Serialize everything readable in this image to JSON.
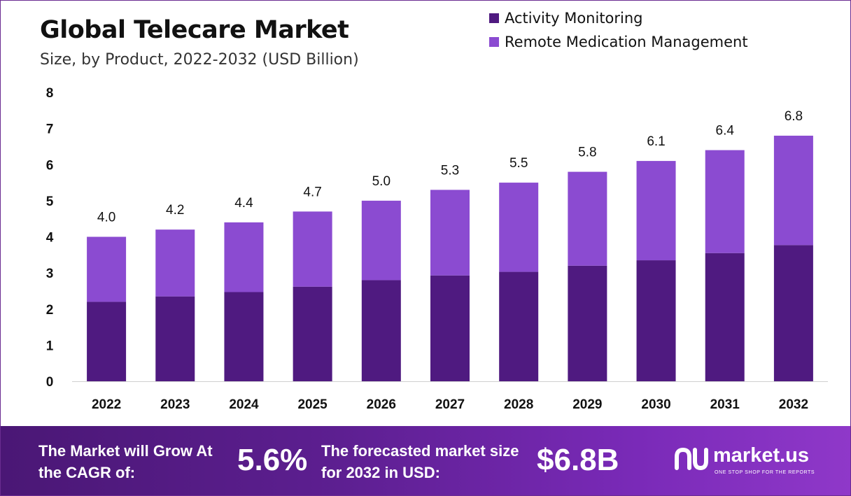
{
  "chart_data": {
    "type": "bar",
    "stacked": true,
    "title": "Global Telecare Market",
    "subtitle": "Size, by Product, 2022-2032 (USD Billion)",
    "categories": [
      "2022",
      "2023",
      "2024",
      "2025",
      "2026",
      "2027",
      "2028",
      "2029",
      "2030",
      "2031",
      "2032"
    ],
    "series": [
      {
        "name": "Activity Monitoring",
        "color": "#4f1a80",
        "values": [
          2.2,
          2.35,
          2.47,
          2.62,
          2.8,
          2.93,
          3.03,
          3.2,
          3.35,
          3.55,
          3.77
        ]
      },
      {
        "name": "Remote Medication Management",
        "color": "#8b4bd1",
        "values": [
          1.8,
          1.85,
          1.93,
          2.08,
          2.2,
          2.37,
          2.47,
          2.6,
          2.75,
          2.85,
          3.03
        ]
      }
    ],
    "totals": [
      "4.0",
      "4.2",
      "4.4",
      "4.7",
      "5.0",
      "5.3",
      "5.5",
      "5.8",
      "6.1",
      "6.4",
      "6.8"
    ],
    "ylim": [
      0,
      8
    ],
    "yticks": [
      "0",
      "1",
      "2",
      "3",
      "4",
      "5",
      "6",
      "7",
      "8"
    ],
    "xlabel": "",
    "ylabel": "",
    "grid": false,
    "legend_position": "top-right"
  },
  "footer": {
    "cagr_label": "The Market will Grow At the CAGR of:",
    "cagr_value": "5.6%",
    "forecast_label": "The forecasted market size for 2032 in USD:",
    "forecast_value": "$6.8B"
  },
  "brand": {
    "name": "market.us",
    "tagline": "ONE STOP SHOP FOR THE REPORTS"
  },
  "colors": {
    "accent": "#6a2c91",
    "footer_start": "#4a1775",
    "footer_end": "#8f38c9"
  }
}
